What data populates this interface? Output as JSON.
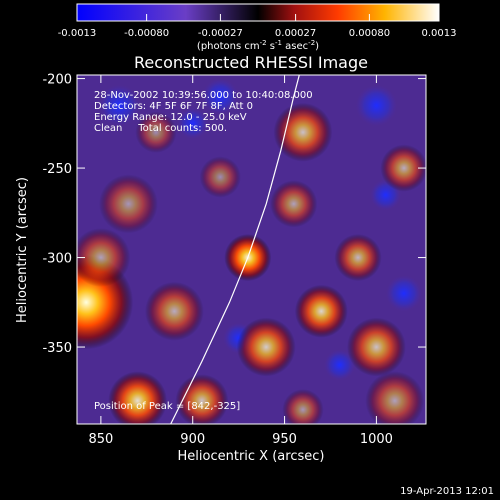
{
  "chart_data": {
    "type": "heatmap",
    "title": "Reconstructed RHESSI Image",
    "xlabel": "Heliocentric X (arcsec)",
    "ylabel": "Heliocentric Y (arcsec)",
    "xlim": [
      837,
      1027
    ],
    "ylim": [
      -393,
      -198
    ],
    "x_ticks": [
      850,
      900,
      950,
      1000
    ],
    "y_ticks": [
      -200,
      -250,
      -300,
      -350
    ],
    "colorbar": {
      "tick_labels": [
        "-0.0013",
        "-0.00080",
        "-0.00027",
        "0.00027",
        "0.00080",
        "0.0013"
      ],
      "range": [
        -0.0013,
        0.0013
      ],
      "unit_label": "(photons cm",
      "unit_sup1": "-2",
      "unit_mid1": " s",
      "unit_sup2": "-1",
      "unit_mid2": " asec",
      "unit_sup3": "-2",
      "unit_end": ")"
    },
    "annotations": {
      "time_range": "28-Nov-2002 10:39:56.000 to 10:40:08.000",
      "detectors": "Detectors: 4F 5F 6F 7F 8F, Att 0",
      "energy": "Energy Range: 12.0 - 25.0 keV",
      "clean": "Clean     Total counts: 500.",
      "peak": "Position of Peak = [842,-325]"
    },
    "limb_curve": [
      [
        888,
        -393
      ],
      [
        905,
        -358
      ],
      [
        920,
        -325
      ],
      [
        930,
        -300
      ],
      [
        940,
        -270
      ],
      [
        948,
        -240
      ],
      [
        955,
        -210
      ],
      [
        958,
        -198
      ]
    ],
    "blobs": [
      {
        "x": 842,
        "y": -325,
        "r": 16,
        "i": 1.0
      },
      {
        "x": 850,
        "y": -300,
        "r": 10,
        "i": 0.55
      },
      {
        "x": 870,
        "y": -380,
        "r": 10,
        "i": 0.85
      },
      {
        "x": 905,
        "y": -380,
        "r": 9,
        "i": 0.7
      },
      {
        "x": 930,
        "y": -300,
        "r": 8,
        "i": 0.95
      },
      {
        "x": 890,
        "y": -330,
        "r": 10,
        "i": 0.6
      },
      {
        "x": 865,
        "y": -270,
        "r": 10,
        "i": 0.5
      },
      {
        "x": 940,
        "y": -350,
        "r": 10,
        "i": 0.75
      },
      {
        "x": 970,
        "y": -330,
        "r": 9,
        "i": 0.8
      },
      {
        "x": 1000,
        "y": -350,
        "r": 10,
        "i": 0.7
      },
      {
        "x": 990,
        "y": -300,
        "r": 8,
        "i": 0.65
      },
      {
        "x": 955,
        "y": -270,
        "r": 8,
        "i": 0.55
      },
      {
        "x": 960,
        "y": -230,
        "r": 10,
        "i": 0.7
      },
      {
        "x": 1015,
        "y": -250,
        "r": 8,
        "i": 0.6
      },
      {
        "x": 1010,
        "y": -380,
        "r": 10,
        "i": 0.55
      },
      {
        "x": 915,
        "y": -255,
        "r": 7,
        "i": 0.45
      },
      {
        "x": 880,
        "y": -230,
        "r": 7,
        "i": 0.45
      },
      {
        "x": 960,
        "y": -385,
        "r": 7,
        "i": 0.5
      }
    ],
    "dark_spots": [
      {
        "x": 860,
        "y": -215,
        "r": 8
      },
      {
        "x": 900,
        "y": -225,
        "r": 6
      },
      {
        "x": 915,
        "y": -210,
        "r": 7
      },
      {
        "x": 1000,
        "y": -215,
        "r": 8
      },
      {
        "x": 1005,
        "y": -265,
        "r": 6
      },
      {
        "x": 925,
        "y": -345,
        "r": 6
      },
      {
        "x": 980,
        "y": -360,
        "r": 6
      },
      {
        "x": 1015,
        "y": -320,
        "r": 7
      }
    ]
  },
  "footer": {
    "timestamp": "19-Apr-2013 12:01"
  }
}
